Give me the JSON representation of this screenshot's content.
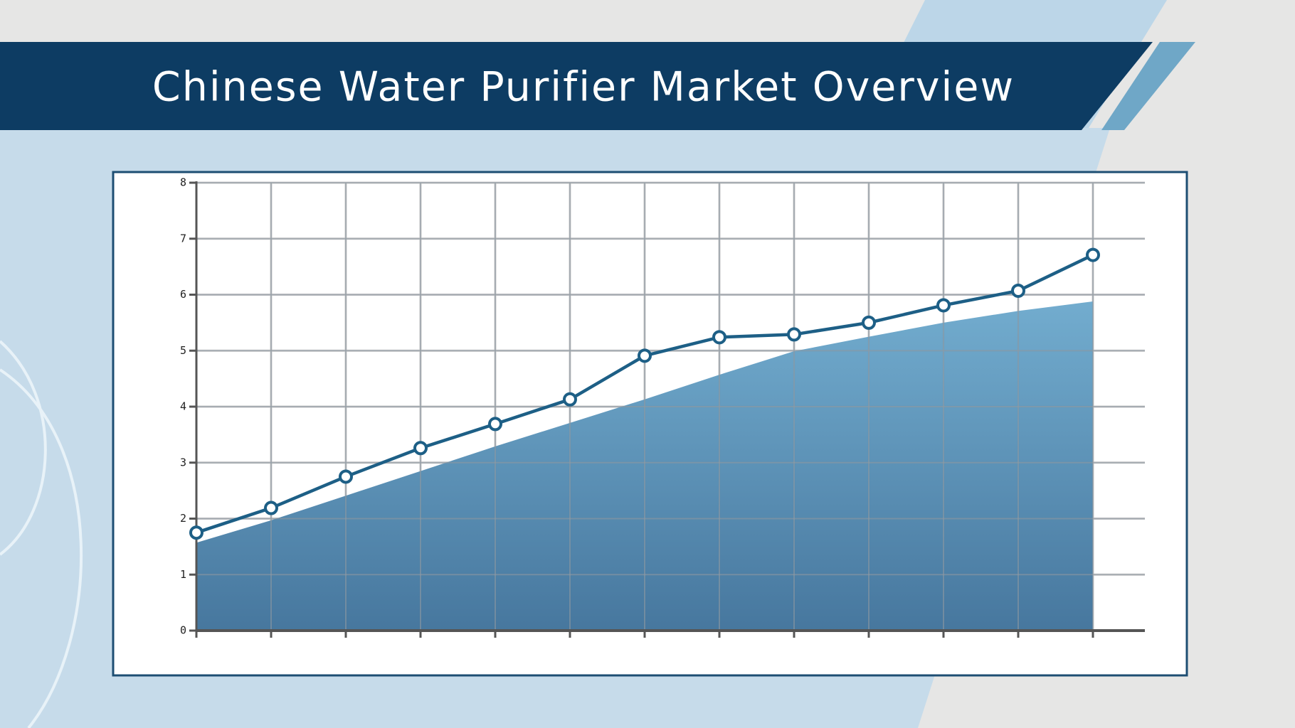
{
  "chart_data": {
    "type": "line",
    "title": "Chinese Water Purifier Market Overview",
    "categories": [
      null,
      null,
      null,
      null,
      null,
      null,
      null,
      null,
      null,
      null,
      null,
      null,
      null
    ],
    "series": [
      {
        "kind": "area",
        "color": "#4f87ad",
        "values": [
          1.57,
          1.97,
          2.41,
          2.85,
          3.29,
          3.71,
          4.13,
          4.57,
          4.99,
          5.25,
          5.5,
          5.71,
          5.88
        ]
      },
      {
        "kind": "line",
        "color": "#1d5f86",
        "values": [
          1.75,
          2.19,
          2.75,
          3.26,
          3.69,
          4.13,
          4.91,
          5.24,
          5.29,
          5.5,
          5.81,
          6.07,
          6.71
        ]
      }
    ],
    "ylim": [
      0,
      8
    ],
    "yticks": [
      0,
      1,
      2,
      3,
      4,
      5,
      6,
      7,
      8
    ],
    "grid": true
  }
}
